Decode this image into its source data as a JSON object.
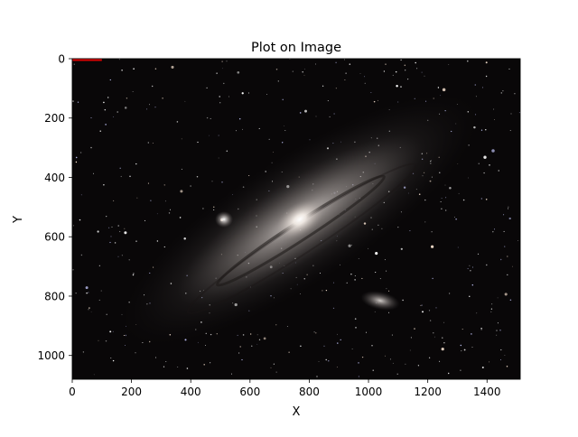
{
  "chart_data": {
    "type": "line",
    "title": "Plot on Image",
    "xlabel": "X",
    "ylabel": "Y",
    "xlim": [
      0,
      1512
    ],
    "ylim": [
      1080,
      0
    ],
    "y_inverted": true,
    "grid": false,
    "legend": "none",
    "background_image": "galaxy-photo",
    "xticks": [
      0,
      200,
      400,
      600,
      800,
      1000,
      1200,
      1400
    ],
    "yticks": [
      0,
      200,
      400,
      600,
      800,
      1000
    ],
    "series": [
      {
        "x": [
          0,
          100
        ],
        "y": [
          0,
          0
        ],
        "color": "#e00000"
      }
    ]
  }
}
